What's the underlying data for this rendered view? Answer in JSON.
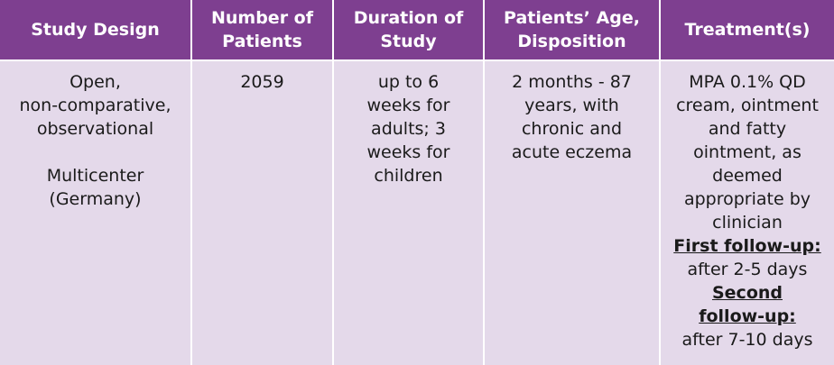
{
  "headers": [
    [
      "Study Design"
    ],
    [
      "Number of",
      "Patients"
    ],
    [
      "Duration of",
      "Study"
    ],
    [
      "Patients’ Age,",
      "Disposition"
    ],
    [
      "Treatment(s)"
    ]
  ],
  "row": {
    "design": {
      "lines": [
        "Open,",
        "non-comparative,",
        "observational"
      ],
      "lines2": [
        "Multicenter",
        "(Germany)"
      ]
    },
    "patients": "2059",
    "duration": [
      "up to 6",
      "weeks for",
      "adults; 3",
      "weeks for",
      "children"
    ],
    "age": [
      "2 months - 87",
      "years, with",
      "chronic and",
      "acute eczema"
    ],
    "treatment": {
      "lines": [
        "MPA 0.1% QD",
        "cream, ointment",
        "and fatty",
        "ointment, as",
        "deemed",
        "appropriate by",
        "clinician"
      ],
      "followup1_label": "First follow-up:",
      "followup1_value": "after 2-5 days",
      "followup2_label": [
        "Second",
        "follow-up:"
      ],
      "followup2_value": "after 7-10 days"
    }
  }
}
